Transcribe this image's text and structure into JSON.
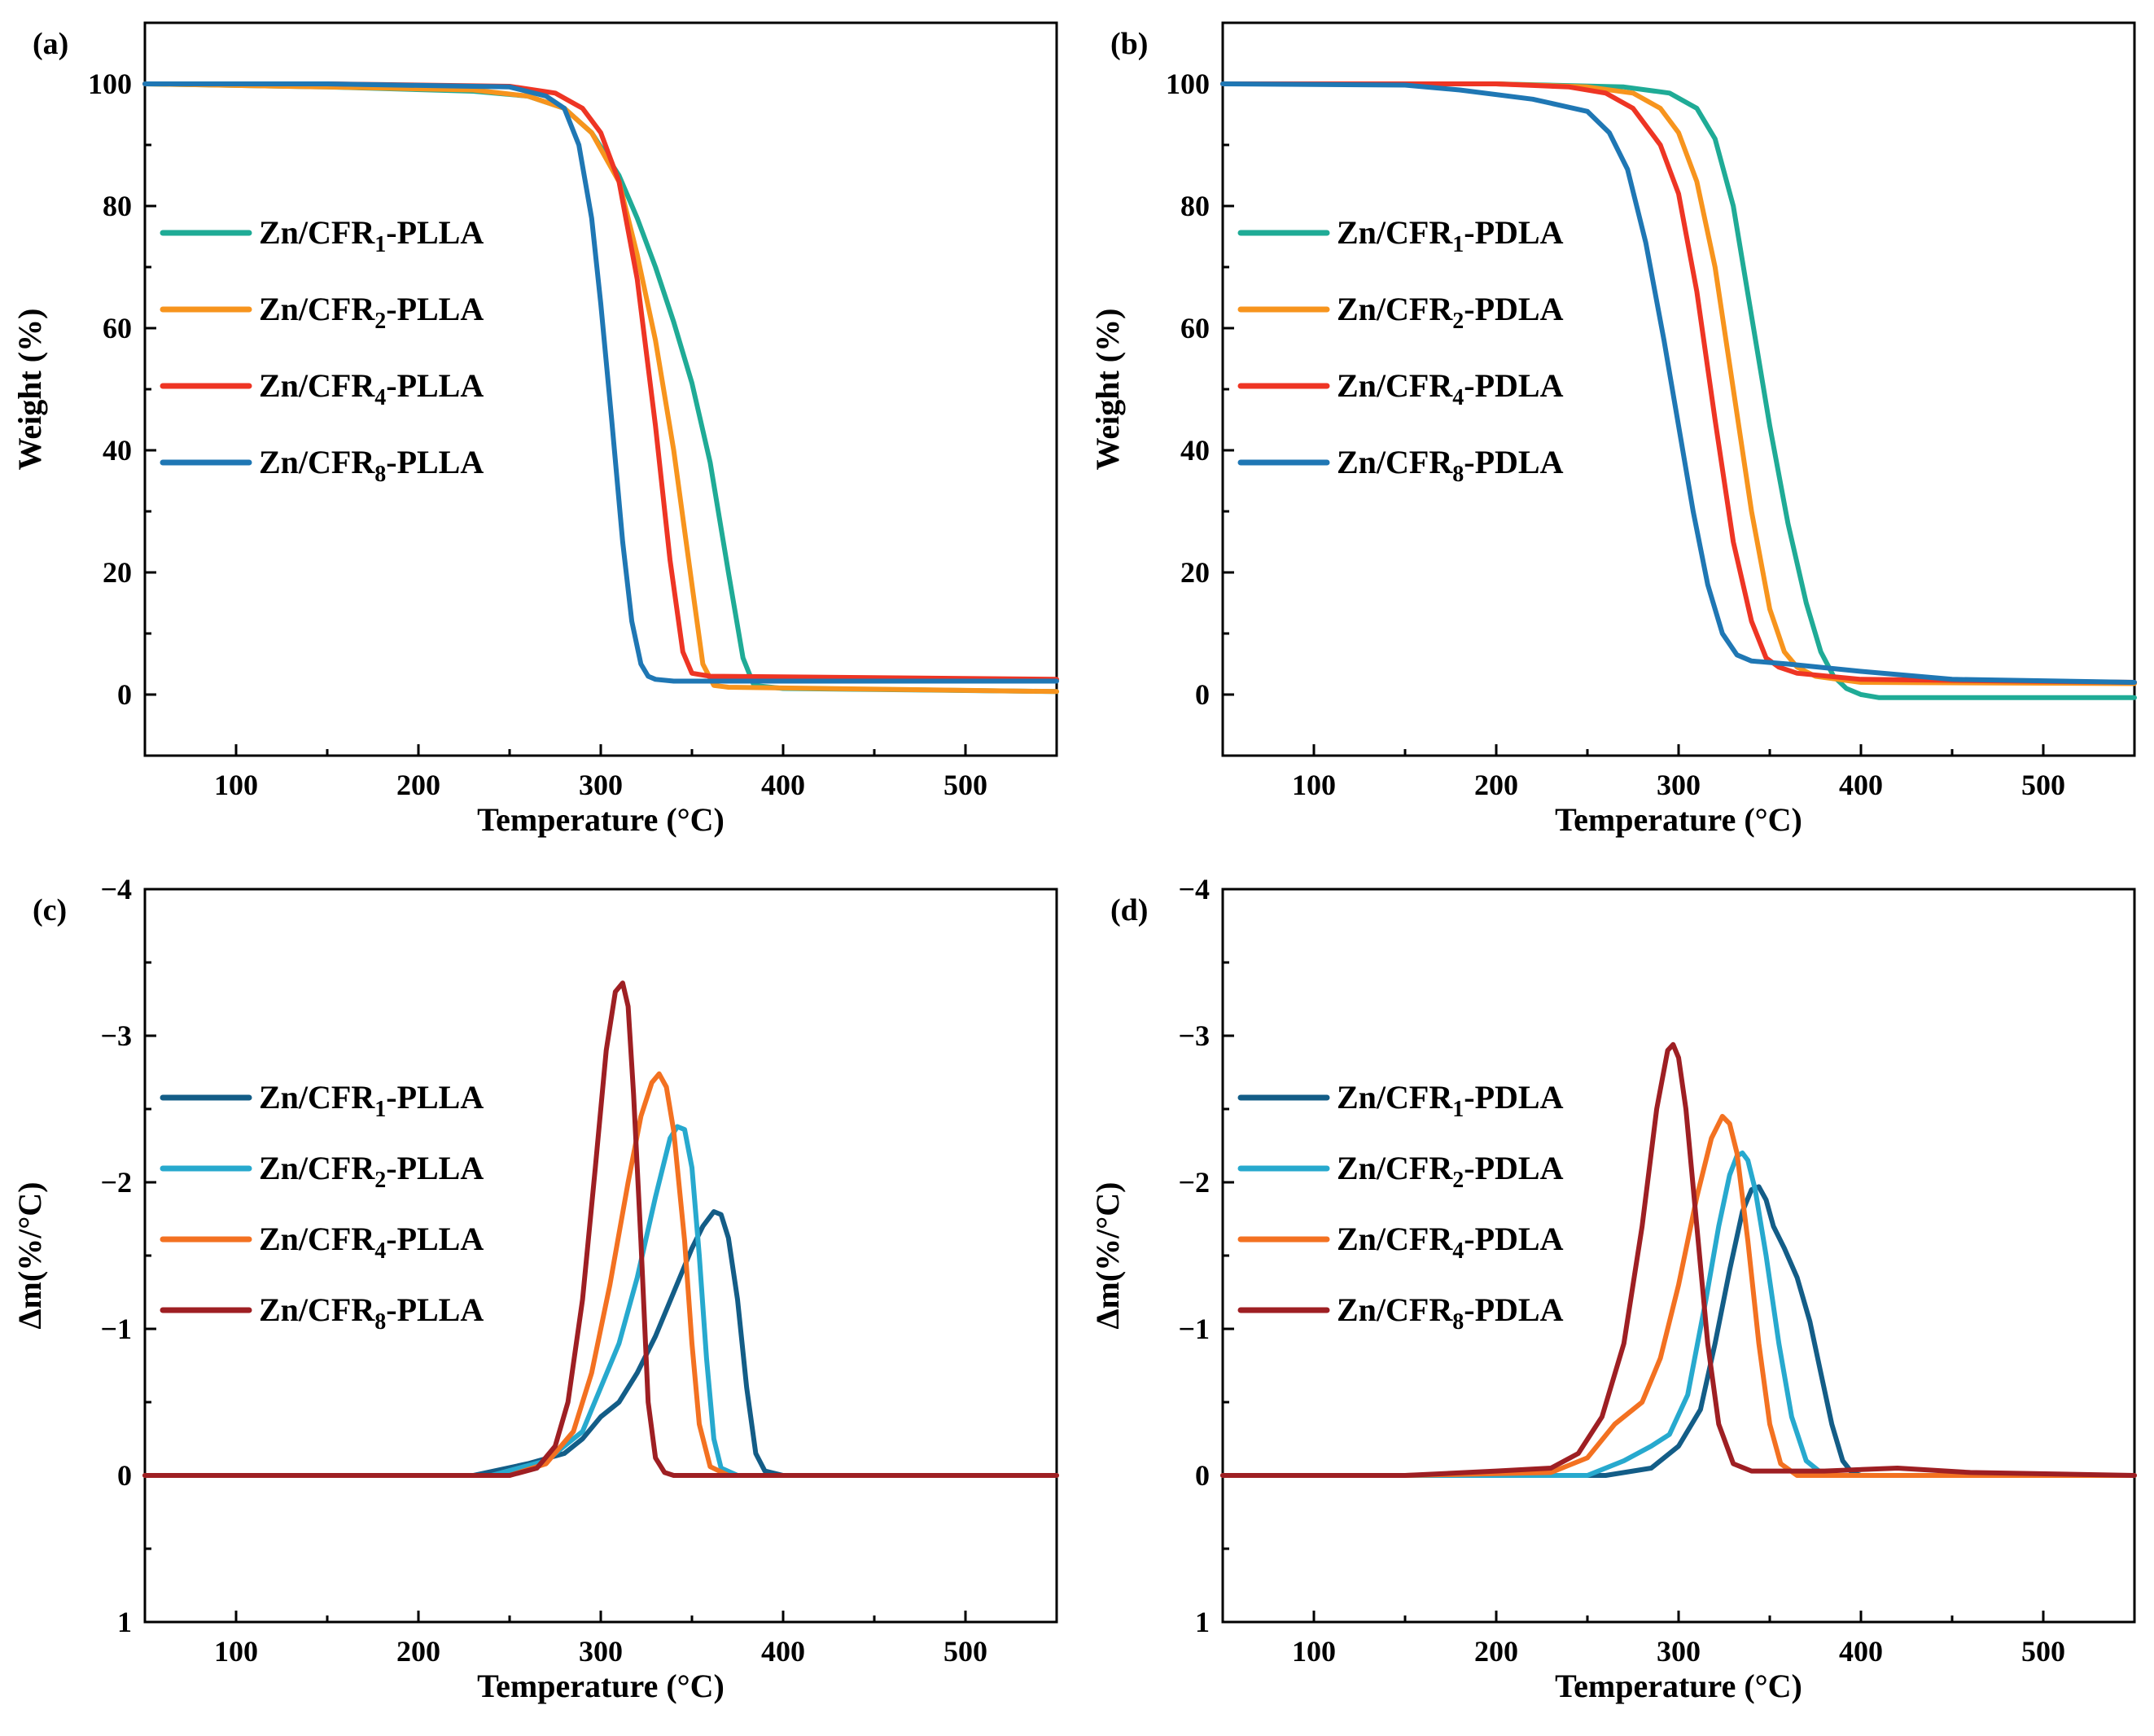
{
  "chart_data": [
    {
      "panel": "(a)",
      "type": "line",
      "xlabel": "Temperature (°C)",
      "ylabel": "Weight (%)",
      "xlim": [
        50,
        550
      ],
      "ylim": [
        -10,
        110
      ],
      "xticks": [
        100,
        200,
        300,
        400,
        500
      ],
      "yticks": [
        0,
        20,
        40,
        60,
        80,
        100
      ],
      "ytick_labels": [
        "0",
        "20",
        "40",
        "60",
        "80",
        "100"
      ],
      "legend_position": "middle-left",
      "series": [
        {
          "base": "Zn/CFR",
          "sub": "1",
          "suffix": "-PLLA",
          "color": "#1fab96",
          "x": [
            50,
            150,
            230,
            260,
            280,
            295,
            310,
            320,
            330,
            340,
            350,
            360,
            370,
            378,
            384,
            400,
            550
          ],
          "y": [
            100,
            99.5,
            98.8,
            98,
            96,
            92,
            85,
            78,
            70,
            61,
            51,
            38,
            20,
            6,
            1.5,
            1,
            0.5
          ]
        },
        {
          "base": "Zn/CFR",
          "sub": "2",
          "suffix": "-PLLA",
          "color": "#f7941d",
          "x": [
            50,
            150,
            230,
            260,
            280,
            295,
            310,
            320,
            330,
            340,
            350,
            356,
            362,
            370,
            550
          ],
          "y": [
            100,
            99.5,
            99,
            98,
            96,
            92,
            84,
            72,
            58,
            40,
            18,
            5,
            1.5,
            1.2,
            0.5
          ]
        },
        {
          "base": "Zn/CFR",
          "sub": "4",
          "suffix": "-PLLA",
          "color": "#ee3524",
          "x": [
            50,
            150,
            250,
            275,
            290,
            300,
            310,
            320,
            330,
            338,
            345,
            350,
            360,
            550
          ],
          "y": [
            100,
            100,
            99.6,
            98.5,
            96,
            92,
            84,
            68,
            44,
            22,
            7,
            3.5,
            3,
            2.5
          ]
        },
        {
          "base": "Zn/CFR",
          "sub": "8",
          "suffix": "-PLLA",
          "color": "#1f77b4",
          "x": [
            50,
            150,
            250,
            270,
            280,
            288,
            295,
            300,
            306,
            312,
            317,
            322,
            326,
            330,
            340,
            550
          ],
          "y": [
            100,
            100,
            99.5,
            98,
            96,
            90,
            78,
            64,
            45,
            25,
            12,
            5,
            3,
            2.5,
            2.2,
            2.2
          ]
        }
      ]
    },
    {
      "panel": "(b)",
      "type": "line",
      "xlabel": "Temperature (°C)",
      "ylabel": "Weight (%)",
      "xlim": [
        50,
        550
      ],
      "ylim": [
        -10,
        110
      ],
      "xticks": [
        100,
        200,
        300,
        400,
        500
      ],
      "yticks": [
        0,
        20,
        40,
        60,
        80,
        100
      ],
      "ytick_labels": [
        "0",
        "20",
        "40",
        "60",
        "80",
        "100"
      ],
      "legend_position": "middle-left",
      "series": [
        {
          "base": "Zn/CFR",
          "sub": "1",
          "suffix": "-PDLA",
          "color": "#1fab96",
          "x": [
            50,
            200,
            270,
            295,
            310,
            320,
            330,
            340,
            350,
            360,
            370,
            378,
            385,
            392,
            400,
            410,
            550
          ],
          "y": [
            100,
            100,
            99.5,
            98.5,
            96,
            91,
            80,
            62,
            44,
            28,
            15,
            7,
            3,
            1,
            0,
            -0.5,
            -0.5
          ]
        },
        {
          "base": "Zn/CFR",
          "sub": "2",
          "suffix": "-PDLA",
          "color": "#f7941d",
          "x": [
            50,
            200,
            250,
            275,
            290,
            300,
            310,
            320,
            330,
            340,
            350,
            358,
            365,
            375,
            400,
            550
          ],
          "y": [
            100,
            100,
            99.5,
            98.5,
            96,
            92,
            84,
            70,
            50,
            30,
            14,
            7,
            4.5,
            3,
            2,
            1.8
          ]
        },
        {
          "base": "Zn/CFR",
          "sub": "4",
          "suffix": "-PDLA",
          "color": "#ee3524",
          "x": [
            50,
            200,
            240,
            260,
            275,
            290,
            300,
            310,
            320,
            330,
            340,
            348,
            355,
            365,
            400,
            550
          ],
          "y": [
            100,
            100,
            99.5,
            98.5,
            96,
            90,
            82,
            66,
            45,
            25,
            12,
            6,
            4.5,
            3.5,
            2.5,
            2
          ]
        },
        {
          "base": "Zn/CFR",
          "sub": "8",
          "suffix": "-PDLA",
          "color": "#1f77b4",
          "x": [
            50,
            150,
            180,
            220,
            250,
            262,
            272,
            282,
            292,
            300,
            308,
            316,
            324,
            332,
            340,
            360,
            400,
            450,
            550
          ],
          "y": [
            100,
            99.8,
            99,
            97.5,
            95.5,
            92,
            86,
            74,
            58,
            44,
            30,
            18,
            10,
            6.5,
            5.5,
            5,
            3.8,
            2.5,
            2
          ]
        }
      ]
    },
    {
      "panel": "(c)",
      "type": "line",
      "xlabel": "Temperature (°C)",
      "ylabel": "Δm(%/°C)",
      "xlim": [
        50,
        550
      ],
      "ylim": [
        1,
        -4
      ],
      "xticks": [
        100,
        200,
        300,
        400,
        500
      ],
      "yticks": [
        1,
        0,
        -1,
        -2,
        -3,
        -4
      ],
      "ytick_labels": [
        "1",
        "0",
        "−1",
        "−2",
        "−3",
        "−4"
      ],
      "legend_position": "middle-left",
      "series": [
        {
          "base": "Zn/CFR",
          "sub": "1",
          "suffix": "-PLLA",
          "color": "#135d87",
          "x": [
            50,
            230,
            260,
            280,
            290,
            300,
            310,
            320,
            330,
            340,
            350,
            356,
            362,
            366,
            370,
            375,
            380,
            385,
            390,
            400,
            550
          ],
          "y": [
            0,
            0,
            -0.08,
            -0.15,
            -0.25,
            -0.4,
            -0.5,
            -0.7,
            -0.95,
            -1.25,
            -1.55,
            -1.7,
            -1.8,
            -1.78,
            -1.62,
            -1.2,
            -0.6,
            -0.15,
            -0.03,
            0,
            0
          ]
        },
        {
          "base": "Zn/CFR",
          "sub": "2",
          "suffix": "-PLLA",
          "color": "#27a9ce",
          "x": [
            50,
            240,
            270,
            290,
            300,
            310,
            320,
            330,
            338,
            342,
            346,
            350,
            354,
            358,
            362,
            366,
            375,
            550
          ],
          "y": [
            0,
            0,
            -0.1,
            -0.3,
            -0.6,
            -0.9,
            -1.35,
            -1.9,
            -2.3,
            -2.38,
            -2.36,
            -2.1,
            -1.5,
            -0.8,
            -0.25,
            -0.05,
            0,
            0
          ]
        },
        {
          "base": "Zn/CFR",
          "sub": "4",
          "suffix": "-PLLA",
          "color": "#f37121",
          "x": [
            50,
            250,
            270,
            285,
            295,
            305,
            315,
            322,
            328,
            332,
            336,
            340,
            346,
            350,
            354,
            360,
            370,
            550
          ],
          "y": [
            0,
            0,
            -0.08,
            -0.3,
            -0.7,
            -1.3,
            -2.0,
            -2.45,
            -2.68,
            -2.74,
            -2.65,
            -2.35,
            -1.6,
            -0.9,
            -0.35,
            -0.06,
            0,
            0
          ]
        },
        {
          "base": "Zn/CFR",
          "sub": "8",
          "suffix": "-PLLA",
          "color": "#9e1f23",
          "x": [
            50,
            250,
            265,
            275,
            282,
            290,
            297,
            303,
            308,
            312,
            315,
            318,
            322,
            326,
            330,
            335,
            340,
            550
          ],
          "y": [
            0,
            0,
            -0.05,
            -0.2,
            -0.5,
            -1.2,
            -2.1,
            -2.9,
            -3.3,
            -3.36,
            -3.2,
            -2.6,
            -1.6,
            -0.5,
            -0.12,
            -0.02,
            0,
            0
          ]
        }
      ]
    },
    {
      "panel": "(d)",
      "type": "line",
      "xlabel": "Temperature (°C)",
      "ylabel": "Δm(%/°C)",
      "xlim": [
        50,
        550
      ],
      "ylim": [
        1,
        -4
      ],
      "xticks": [
        100,
        200,
        300,
        400,
        500
      ],
      "yticks": [
        1,
        0,
        -1,
        -2,
        -3,
        -4
      ],
      "ytick_labels": [
        "1",
        "0",
        "−1",
        "−2",
        "−3",
        "−4"
      ],
      "legend_position": "middle-left",
      "series": [
        {
          "base": "Zn/CFR",
          "sub": "1",
          "suffix": "-PDLA",
          "color": "#135d87",
          "x": [
            50,
            260,
            285,
            300,
            312,
            320,
            328,
            335,
            340,
            344,
            348,
            352,
            358,
            365,
            372,
            378,
            384,
            390,
            395,
            400,
            550
          ],
          "y": [
            0,
            0,
            -0.05,
            -0.2,
            -0.45,
            -0.9,
            -1.4,
            -1.8,
            -1.95,
            -1.97,
            -1.88,
            -1.7,
            -1.55,
            -1.35,
            -1.05,
            -0.7,
            -0.35,
            -0.1,
            -0.02,
            0,
            0
          ]
        },
        {
          "base": "Zn/CFR",
          "sub": "2",
          "suffix": "-PDLA",
          "color": "#27a9ce",
          "x": [
            50,
            250,
            270,
            285,
            295,
            305,
            315,
            322,
            328,
            332,
            335,
            338,
            342,
            348,
            355,
            362,
            370,
            380,
            550
          ],
          "y": [
            0,
            0,
            -0.1,
            -0.2,
            -0.28,
            -0.55,
            -1.2,
            -1.7,
            -2.05,
            -2.18,
            -2.2,
            -2.15,
            -1.95,
            -1.5,
            -0.9,
            -0.4,
            -0.1,
            0,
            0
          ]
        },
        {
          "base": "Zn/CFR",
          "sub": "4",
          "suffix": "-PDLA",
          "color": "#f37121",
          "x": [
            50,
            150,
            230,
            250,
            265,
            280,
            290,
            300,
            310,
            318,
            324,
            328,
            332,
            338,
            344,
            350,
            356,
            365,
            550
          ],
          "y": [
            0,
            0,
            -0.02,
            -0.12,
            -0.35,
            -0.5,
            -0.8,
            -1.3,
            -1.9,
            -2.3,
            -2.45,
            -2.4,
            -2.2,
            -1.6,
            -0.9,
            -0.35,
            -0.08,
            0,
            0
          ]
        },
        {
          "base": "Zn/CFR",
          "sub": "8",
          "suffix": "-PDLA",
          "color": "#9e1f23",
          "x": [
            50,
            150,
            200,
            230,
            245,
            258,
            270,
            280,
            288,
            294,
            297,
            300,
            304,
            310,
            316,
            322,
            330,
            340,
            380,
            420,
            460,
            550
          ],
          "y": [
            0,
            0,
            -0.03,
            -0.05,
            -0.15,
            -0.4,
            -0.9,
            -1.7,
            -2.5,
            -2.9,
            -2.94,
            -2.85,
            -2.5,
            -1.7,
            -0.9,
            -0.35,
            -0.08,
            -0.03,
            -0.03,
            -0.05,
            -0.02,
            0
          ]
        }
      ]
    }
  ]
}
